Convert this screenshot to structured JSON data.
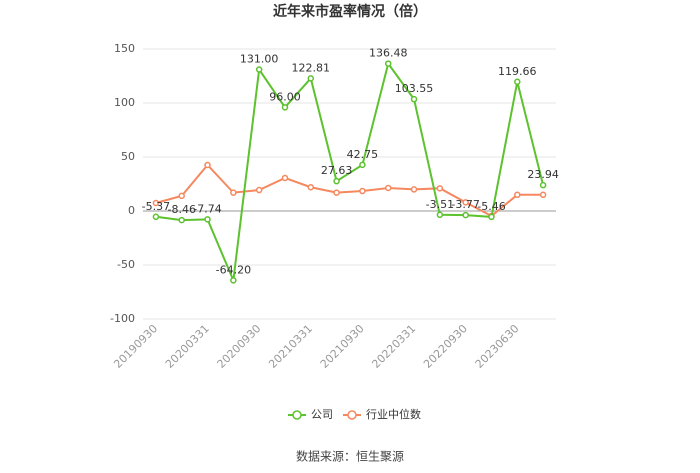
{
  "chart_data": {
    "type": "line",
    "title": "近年来市盈率情况（倍）",
    "categories": [
      "20190930",
      null,
      "20200331",
      null,
      "20200930",
      null,
      "20210331",
      null,
      "20210930",
      null,
      "20220331",
      null,
      "20220930",
      null,
      "20230630",
      null
    ],
    "series": [
      {
        "name": "公司",
        "color": "#5cc22e",
        "values": [
          -5.37,
          -8.46,
          -7.74,
          -64.2,
          131.0,
          96.0,
          122.81,
          27.63,
          42.75,
          136.48,
          103.55,
          -3.51,
          -3.77,
          -5.46,
          119.66,
          23.94
        ],
        "value_labels": [
          "-5.37",
          "-8.46",
          "-7.74",
          "-64.20",
          "131.00",
          "96.00",
          "122.81",
          "27.63",
          "42.75",
          "136.48",
          "103.55",
          "-3.51",
          "-3.77",
          "-5.46",
          "119.66",
          "23.94"
        ]
      },
      {
        "name": "行业中位数",
        "color": "#f5885f",
        "values": [
          7.4,
          14,
          42.6,
          17,
          19.4,
          30.6,
          22,
          17,
          18.5,
          21.3,
          20,
          21,
          8,
          -4.6,
          15,
          15
        ]
      }
    ],
    "ylim": [
      -100,
      150
    ],
    "yticks": [
      -100,
      -50,
      0,
      50,
      100,
      150
    ],
    "grid": true,
    "source": "数据来源：恒生聚源"
  }
}
